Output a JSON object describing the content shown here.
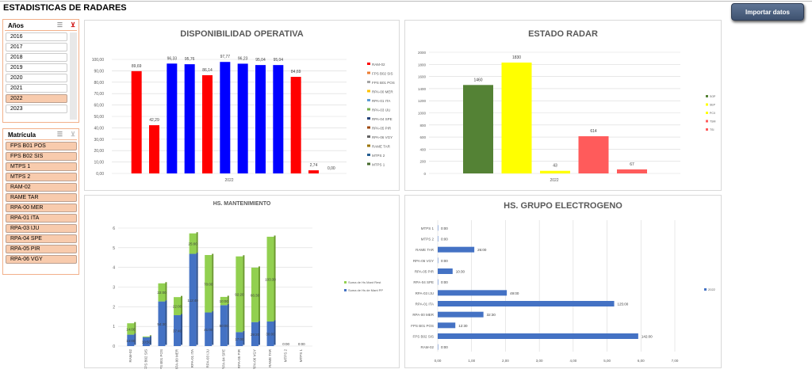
{
  "title": "ESTADISTICAS DE RADARES",
  "import_button": "Importar datos",
  "slicer_years": {
    "title": "Años",
    "items": [
      "2016",
      "2017",
      "2018",
      "2019",
      "2020",
      "2021",
      "2022",
      "2023"
    ],
    "selected": "2022"
  },
  "slicer_matricula": {
    "title": "Matrícula",
    "items": [
      "FPS B01 POS",
      "FPS B02 SIS",
      "MTPS 1",
      "MTPS 2",
      "RAM-02",
      "RAME TAR",
      "RPA-00 MER",
      "RPA-01 ITA",
      "RPA-03 IJU",
      "RPA-04 SPE",
      "RPA-05 PIR",
      "RPA-06 VGY"
    ]
  },
  "chart_data": [
    {
      "type": "bar",
      "title": "DISPONIBILIDAD OPERATIVA",
      "categories": [
        "2022"
      ],
      "ylim": [
        0,
        100
      ],
      "yticks": [
        "0,00",
        "10,00",
        "20,00",
        "30,00",
        "40,00",
        "50,00",
        "60,00",
        "70,00",
        "80,00",
        "90,00",
        "100,00"
      ],
      "legend": "right",
      "series": [
        {
          "name": "RAM-02",
          "value": 89.69,
          "label": "89,69",
          "color": "#ff0000"
        },
        {
          "name": "FPS B02 SIS",
          "value": 42.29,
          "label": "42,29",
          "color": "#ff0000"
        },
        {
          "name": "FPS B01 POS",
          "value": 96.33,
          "label": "96,33",
          "color": "#0000ff"
        },
        {
          "name": "RPA-00 MER",
          "value": 95.76,
          "label": "95,76",
          "color": "#0000ff"
        },
        {
          "name": "RPA-01 ITA",
          "value": 86.14,
          "label": "86,14",
          "color": "#ff0000"
        },
        {
          "name": "RPA-03 IJU",
          "value": 97.77,
          "label": "97,77",
          "color": "#0000ff"
        },
        {
          "name": "RPA-04 SPE",
          "value": 96.23,
          "label": "96,23",
          "color": "#0000ff"
        },
        {
          "name": "RPA-05 PIR",
          "value": 95.04,
          "label": "95,04",
          "color": "#0000ff"
        },
        {
          "name": "RPA-06 VGY",
          "value": 95.04,
          "label": "95,04",
          "color": "#0000ff"
        },
        {
          "name": "RAME TAR",
          "value": 84.69,
          "label": "84,69",
          "color": "#ff0000"
        },
        {
          "name": "MTPS 2",
          "value": 2.74,
          "label": "2,74",
          "color": "#ff0000"
        },
        {
          "name": "MTPS 1",
          "value": 0,
          "label": "0,00",
          "color": "#ff0000"
        }
      ],
      "legend_colors": [
        "#ff0000",
        "#ed7d31",
        "#a5a5a5",
        "#ffc000",
        "#5b9bd5",
        "#70ad47",
        "#264478",
        "#9e480e",
        "#636363",
        "#997300",
        "#255e91",
        "#43682b"
      ]
    },
    {
      "type": "bar",
      "title": "ESTADO RADAR",
      "categories": [
        "2022"
      ],
      "ylim": [
        0,
        2000
      ],
      "yticks": [
        "0",
        "200",
        "400",
        "600",
        "800",
        "1000",
        "1200",
        "1400",
        "1600",
        "1800",
        "2000"
      ],
      "legend": "right",
      "series": [
        {
          "name": "SOP",
          "value": 1460,
          "color": "#548235"
        },
        {
          "name": "SEP",
          "value": 1830,
          "color": "#ffff00"
        },
        {
          "name": "PCX",
          "value": 43,
          "color": "#ffff00"
        },
        {
          "name": "TSM",
          "value": 614,
          "color": "#ff5b5b"
        },
        {
          "name": "TSI",
          "value": 67,
          "color": "#ff5b5b"
        }
      ]
    },
    {
      "type": "bar",
      "stacked": true,
      "title": "HS. MANTENIMIENTO",
      "ylim": [
        0,
        6
      ],
      "yticks": [
        "0",
        "1",
        "2",
        "3",
        "4",
        "5",
        "6"
      ],
      "legend": "right",
      "categories": [
        "RAM-02",
        "FPS B02 SIS",
        "FPS B01 POS",
        "RPA-00 MER",
        "RPA-01 ITA",
        "RPA-03 IJU",
        "RPA-04 SPE",
        "RPA-05 PIR",
        "RPA-06 VGY",
        "RAME TAR",
        "MTPS 2",
        "MTPS 1"
      ],
      "series": [
        {
          "name": "Suma de Hs de Mant PP",
          "color": "#4472c4",
          "values": [
            0.58,
            0.45,
            2.27,
            1.57,
            4.69,
            1.71,
            2.08,
            0.71,
            1.22,
            1.25,
            0,
            0
          ],
          "labels": [
            "14:00",
            "10:50",
            "54:30",
            "37:40",
            "112:40",
            "41:00",
            "50:00",
            "17:00",
            "29:20",
            "30:00",
            "0:00",
            "0:00"
          ]
        },
        {
          "name": "Suma de Hs Mant Rest",
          "color": "#92d050",
          "values": [
            0.58,
            0.04,
            0.92,
            0.92,
            1.04,
            2.92,
            0.42,
            3.85,
            2.77,
            4.31,
            0,
            0
          ],
          "labels": [
            "14:00",
            "",
            "22:00",
            "22:00",
            "25:00",
            "70:00",
            "10:00",
            "92:20",
            "66:30",
            "103:30",
            "",
            ""
          ]
        }
      ]
    },
    {
      "type": "bar",
      "orientation": "horizontal",
      "title": "HS. GRUPO ELECTROGENO",
      "xlim": [
        0,
        7
      ],
      "xticks": [
        "0,00",
        "1,00",
        "2,00",
        "3,00",
        "4,00",
        "5,00",
        "6,00",
        "7,00"
      ],
      "legend": "right",
      "categories": [
        "RAM-02",
        "FPS B02 SIS",
        "FPS B01 POS",
        "RPA-00 MER",
        "RPA-01 ITA",
        "RPA-03 IJU",
        "RPA-04 SPE",
        "RPA-05 PIR",
        "RPA-06 VGY",
        "RAME TAR",
        "MTPS 2",
        "MTPS 1"
      ],
      "series": [
        {
          "name": "2022",
          "color": "#4472c4",
          "values": [
            0,
            5.92,
            0.52,
            1.35,
            5.21,
            2.04,
            0,
            0.44,
            0,
            1.08,
            0,
            0
          ],
          "labels": [
            "0:00",
            "142:00",
            "12:30",
            "32:30",
            "125:00",
            "49:00",
            "0:00",
            "10:30",
            "0:00",
            "26:00",
            "0:00",
            "0:00"
          ]
        }
      ]
    }
  ]
}
